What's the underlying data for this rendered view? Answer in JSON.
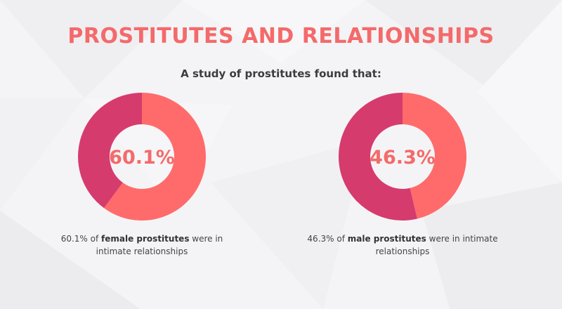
{
  "header": {
    "title": "PROSTITUTES AND RELATIONSHIPS",
    "subtitle": "A study of prostitutes found that:"
  },
  "colors": {
    "highlight": "#ff6b6b",
    "remainder": "#d63b6e",
    "title": "#f46a6a",
    "center_text": "#f46a6a"
  },
  "chart_data": [
    {
      "type": "pie",
      "title": "",
      "center_label": "60.1%",
      "slices": [
        {
          "label": "in intimate relationships",
          "value": 60.1
        },
        {
          "label": "other",
          "value": 39.9
        }
      ],
      "caption": {
        "pre": "60.1% of ",
        "bold": "female prostitutes",
        "post": " were in intimate relationships"
      }
    },
    {
      "type": "pie",
      "title": "",
      "center_label": "46.3%",
      "slices": [
        {
          "label": "in intimate relationships",
          "value": 46.3
        },
        {
          "label": "other",
          "value": 53.7
        }
      ],
      "caption": {
        "pre": "46.3% of ",
        "bold": "male prostitutes",
        "post": " were in intimate relationships"
      }
    }
  ]
}
